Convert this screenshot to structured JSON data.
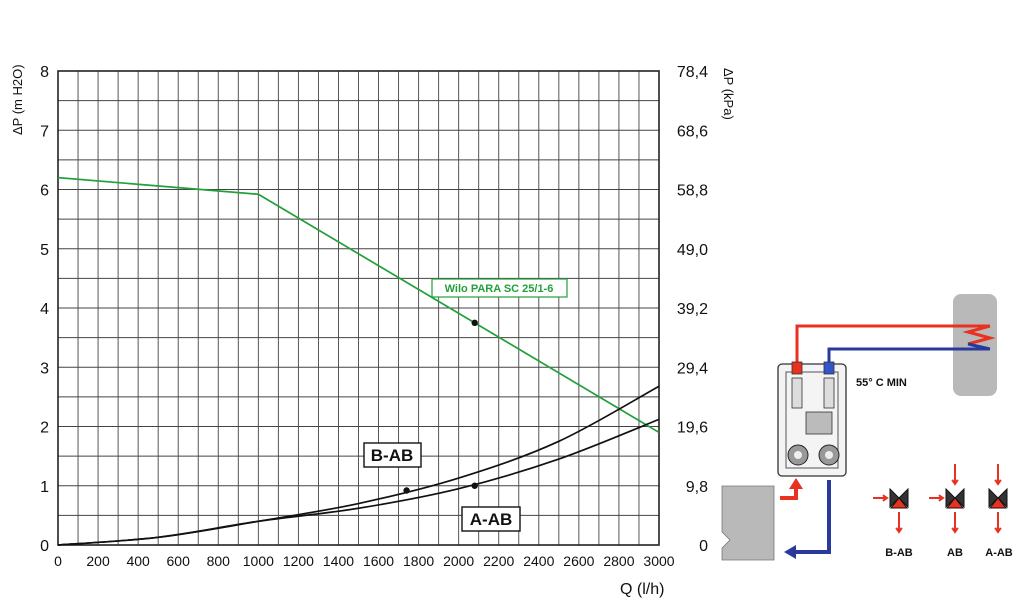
{
  "chart_data": {
    "type": "line",
    "xlabel": "Q (l/h)",
    "ylabel_left": "ΔP (m H2O)",
    "ylabel_right": "ΔP (kPa)",
    "xlim": [
      0,
      3000
    ],
    "ylim": [
      0,
      8
    ],
    "x_ticks": [
      "0",
      "200",
      "400",
      "600",
      "800",
      "1000",
      "1200",
      "1400",
      "1600",
      "1800",
      "2000",
      "2200",
      "2400",
      "2600",
      "2800",
      "3000"
    ],
    "y_ticks_left": [
      "0",
      "1",
      "2",
      "3",
      "4",
      "5",
      "6",
      "7",
      "8"
    ],
    "y_ticks_right": [
      "0",
      "9,8",
      "19,6",
      "29,4",
      "39,2",
      "49,0",
      "58,8",
      "68,6",
      "78,4"
    ],
    "grid": true,
    "series": [
      {
        "name": "Wilo PARA SC 25/1-6",
        "color": "#22a03a",
        "x": [
          0,
          1000,
          3000
        ],
        "y": [
          6.2,
          5.92,
          1.9
        ],
        "marker": {
          "x": 2080,
          "y": 3.75
        }
      },
      {
        "name": "B-AB",
        "color": "#111111",
        "x": [
          0,
          500,
          1000,
          1500,
          2000,
          2500,
          3000
        ],
        "y": [
          0,
          0.13,
          0.4,
          0.7,
          1.13,
          1.75,
          2.68
        ],
        "marker": {
          "x": 1740,
          "y": 0.92
        }
      },
      {
        "name": "A-AB",
        "color": "#111111",
        "x": [
          0,
          500,
          1000,
          1500,
          2000,
          2500,
          3000
        ],
        "y": [
          0,
          0.13,
          0.4,
          0.62,
          0.95,
          1.45,
          2.12
        ],
        "marker": {
          "x": 2080,
          "y": 1.0
        }
      }
    ]
  },
  "diagram": {
    "temperature_label": "55° C MIN",
    "valve_labels": [
      "B-AB",
      "AB",
      "A-AB"
    ],
    "colors": {
      "hot": "#e8311f",
      "cold": "#2a3a9c",
      "tank": "#b9b9b9"
    }
  }
}
